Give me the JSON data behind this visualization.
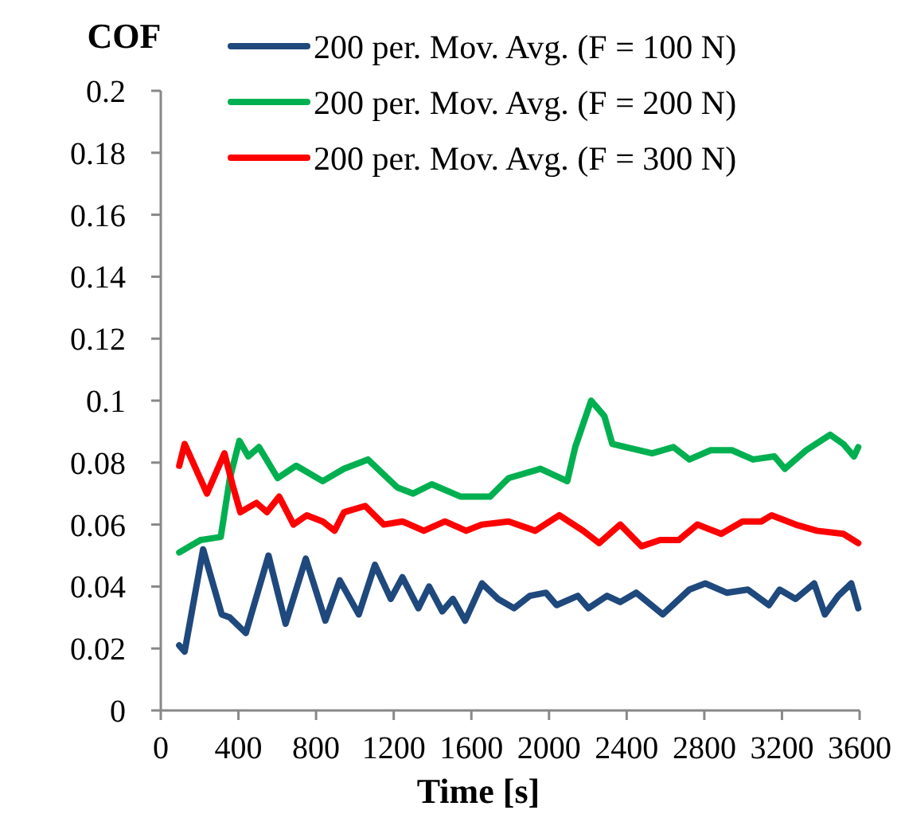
{
  "chart_data": {
    "type": "line",
    "xlabel": "Time [s]",
    "ylabel": "COF",
    "xlim": [
      0,
      3600
    ],
    "xticks": [
      0,
      400,
      800,
      1200,
      1600,
      2000,
      2400,
      2800,
      3200,
      3600
    ],
    "ylim": [
      0,
      0.2
    ],
    "yticks": [
      0,
      0.02,
      0.04,
      0.06,
      0.08,
      0.1,
      0.12,
      0.14,
      0.16,
      0.18,
      0.2
    ],
    "grid": false,
    "legend": "top",
    "marker": "none",
    "line_style": "solid",
    "series": [
      {
        "name": "200 per. Mov. Avg. (F = 100 N)",
        "color": "#1f497d",
        "x": [
          95,
          123,
          218,
          314,
          356,
          438,
          555,
          643,
          747,
          848,
          922,
          1020,
          1103,
          1185,
          1245,
          1327,
          1382,
          1450,
          1505,
          1568,
          1655,
          1737,
          1820,
          1901,
          1984,
          2039,
          2148,
          2203,
          2299,
          2367,
          2449,
          2586,
          2723,
          2805,
          2915,
          3024,
          3133,
          3188,
          3270,
          3366,
          3421,
          3490,
          3557,
          3593
        ],
        "values": [
          0.021,
          0.019,
          0.052,
          0.031,
          0.03,
          0.025,
          0.05,
          0.028,
          0.049,
          0.029,
          0.042,
          0.031,
          0.047,
          0.036,
          0.043,
          0.033,
          0.04,
          0.032,
          0.036,
          0.029,
          0.041,
          0.036,
          0.033,
          0.037,
          0.038,
          0.034,
          0.037,
          0.033,
          0.037,
          0.035,
          0.038,
          0.031,
          0.039,
          0.041,
          0.038,
          0.039,
          0.034,
          0.039,
          0.036,
          0.041,
          0.031,
          0.037,
          0.041,
          0.033
        ]
      },
      {
        "name": "200 per. Mov. Avg. (F = 200 N)",
        "color": "#00b050",
        "x": [
          95,
          205,
          309,
          356,
          405,
          451,
          506,
          602,
          698,
          834,
          944,
          1067,
          1218,
          1300,
          1396,
          1546,
          1696,
          1792,
          1956,
          2094,
          2135,
          2217,
          2285,
          2326,
          2531,
          2641,
          2723,
          2833,
          2942,
          3051,
          3161,
          3215,
          3325,
          3448,
          3516,
          3571,
          3593
        ],
        "values": [
          0.051,
          0.055,
          0.056,
          0.075,
          0.087,
          0.082,
          0.085,
          0.075,
          0.079,
          0.074,
          0.078,
          0.081,
          0.072,
          0.07,
          0.073,
          0.069,
          0.069,
          0.075,
          0.078,
          0.074,
          0.085,
          0.1,
          0.095,
          0.086,
          0.083,
          0.085,
          0.081,
          0.084,
          0.084,
          0.081,
          0.082,
          0.078,
          0.084,
          0.089,
          0.086,
          0.082,
          0.085
        ]
      },
      {
        "name": "200 per. Mov. Avg. (F = 300 N)",
        "color": "#ff0000",
        "x": [
          95,
          123,
          238,
          328,
          369,
          410,
          493,
          547,
          610,
          684,
          752,
          834,
          895,
          944,
          1053,
          1149,
          1245,
          1355,
          1464,
          1573,
          1655,
          1792,
          1929,
          2053,
          2176,
          2258,
          2367,
          2476,
          2572,
          2668,
          2764,
          2887,
          2997,
          3093,
          3147,
          3270,
          3380,
          3516,
          3593
        ],
        "values": [
          0.079,
          0.086,
          0.07,
          0.083,
          0.073,
          0.064,
          0.067,
          0.064,
          0.069,
          0.06,
          0.063,
          0.061,
          0.058,
          0.064,
          0.066,
          0.06,
          0.061,
          0.058,
          0.061,
          0.058,
          0.06,
          0.061,
          0.058,
          0.063,
          0.058,
          0.054,
          0.06,
          0.053,
          0.055,
          0.055,
          0.06,
          0.057,
          0.061,
          0.061,
          0.063,
          0.06,
          0.058,
          0.057,
          0.054
        ]
      }
    ]
  }
}
